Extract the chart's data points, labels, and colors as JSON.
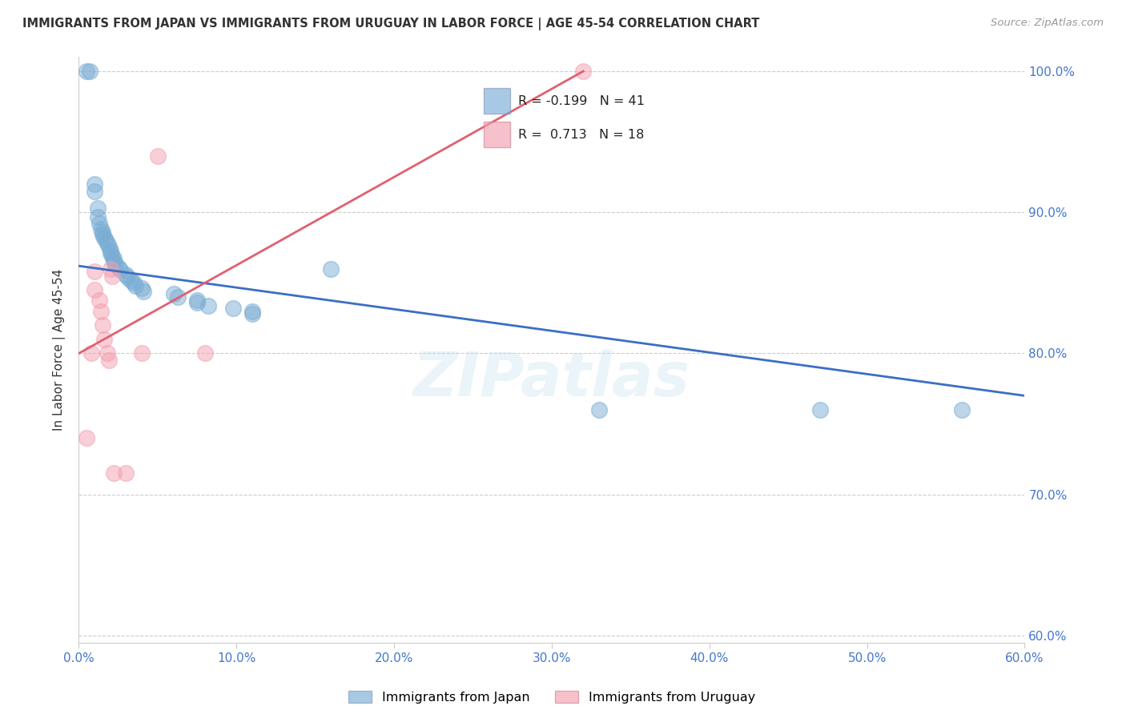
{
  "title": "IMMIGRANTS FROM JAPAN VS IMMIGRANTS FROM URUGUAY IN LABOR FORCE | AGE 45-54 CORRELATION CHART",
  "source": "Source: ZipAtlas.com",
  "ylabel": "In Labor Force | Age 45-54",
  "xlim": [
    0.0,
    0.6
  ],
  "ylim": [
    0.595,
    1.01
  ],
  "xticks": [
    0.0,
    0.1,
    0.2,
    0.3,
    0.4,
    0.5,
    0.6
  ],
  "yticks": [
    0.6,
    0.7,
    0.8,
    0.9,
    1.0
  ],
  "xtick_labels": [
    "0.0%",
    "10.0%",
    "20.0%",
    "30.0%",
    "40.0%",
    "50.0%",
    "60.0%"
  ],
  "ytick_labels": [
    "60.0%",
    "70.0%",
    "80.0%",
    "90.0%",
    "100.0%"
  ],
  "japan_R": -0.199,
  "japan_N": 41,
  "uruguay_R": 0.713,
  "uruguay_N": 18,
  "japan_color": "#7aadd4",
  "uruguay_color": "#f4a0b0",
  "japan_line_color": "#3a6fc4",
  "uruguay_line_color": "#e06070",
  "watermark": "ZIPatlas",
  "legend_label_japan": "Immigrants from Japan",
  "legend_label_uruguay": "Immigrants from Uruguay",
  "japan_x": [
    0.005,
    0.007,
    0.01,
    0.01,
    0.012,
    0.012,
    0.013,
    0.014,
    0.015,
    0.015,
    0.016,
    0.017,
    0.018,
    0.019,
    0.02,
    0.02,
    0.021,
    0.022,
    0.022,
    0.023,
    0.025,
    0.026,
    0.03,
    0.031,
    0.033,
    0.035,
    0.036,
    0.04,
    0.041,
    0.06,
    0.063,
    0.075,
    0.075,
    0.082,
    0.098,
    0.11,
    0.11,
    0.16,
    0.33,
    0.47,
    0.56
  ],
  "japan_y": [
    1.0,
    1.0,
    0.92,
    0.915,
    0.903,
    0.897,
    0.892,
    0.888,
    0.886,
    0.884,
    0.882,
    0.88,
    0.878,
    0.876,
    0.873,
    0.871,
    0.869,
    0.867,
    0.865,
    0.863,
    0.861,
    0.859,
    0.856,
    0.854,
    0.852,
    0.85,
    0.848,
    0.846,
    0.844,
    0.842,
    0.84,
    0.838,
    0.836,
    0.834,
    0.832,
    0.83,
    0.828,
    0.86,
    0.76,
    0.76,
    0.76
  ],
  "uruguay_x": [
    0.005,
    0.008,
    0.01,
    0.01,
    0.013,
    0.014,
    0.015,
    0.016,
    0.018,
    0.019,
    0.02,
    0.021,
    0.022,
    0.03,
    0.04,
    0.05,
    0.08,
    0.32
  ],
  "uruguay_y": [
    0.74,
    0.8,
    0.858,
    0.845,
    0.838,
    0.83,
    0.82,
    0.81,
    0.8,
    0.795,
    0.86,
    0.855,
    0.715,
    0.715,
    0.8,
    0.94,
    0.8,
    1.0
  ],
  "japan_trendline_x": [
    0.0,
    0.6
  ],
  "japan_trendline_y": [
    0.862,
    0.77
  ],
  "uruguay_trendline_x": [
    0.0,
    0.32
  ],
  "uruguay_trendline_y": [
    0.8,
    1.0
  ]
}
